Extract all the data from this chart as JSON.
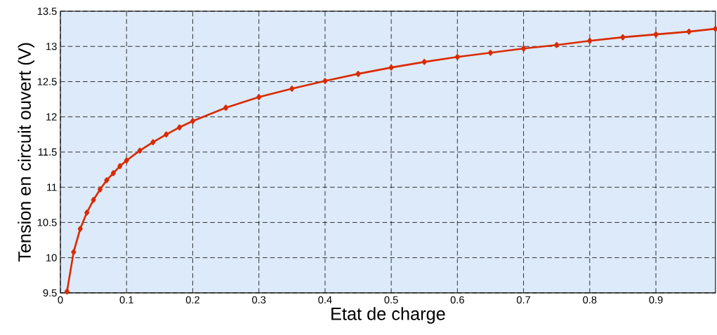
{
  "chart_data": {
    "type": "line",
    "xlabel": "Etat de charge",
    "ylabel": "Tension en circuit ouvert (V)",
    "x": [
      0.01,
      0.02,
      0.03,
      0.04,
      0.05,
      0.06,
      0.07,
      0.08,
      0.09,
      0.1,
      0.12,
      0.14,
      0.16,
      0.18,
      0.2,
      0.25,
      0.3,
      0.35,
      0.4,
      0.45,
      0.5,
      0.55,
      0.6,
      0.65,
      0.7,
      0.75,
      0.8,
      0.85,
      0.9,
      0.95,
      0.99
    ],
    "series": [
      {
        "color": "#d92b00",
        "values": [
          9.52,
          10.08,
          10.41,
          10.64,
          10.82,
          10.97,
          11.1,
          11.2,
          11.3,
          11.38,
          11.52,
          11.64,
          11.75,
          11.85,
          11.94,
          12.13,
          12.28,
          12.4,
          12.51,
          12.61,
          12.7,
          12.78,
          12.85,
          12.91,
          12.97,
          13.02,
          13.08,
          13.13,
          13.17,
          13.21,
          13.25
        ]
      }
    ],
    "xlim": [
      0,
      0.99
    ],
    "ylim": [
      9.5,
      13.5
    ],
    "xticks": [
      0,
      0.1,
      0.2,
      0.3,
      0.4,
      0.5,
      0.6,
      0.7,
      0.8,
      0.9
    ],
    "yticks": [
      9.5,
      10,
      10.5,
      11,
      11.5,
      12,
      12.5,
      13,
      13.5
    ],
    "grid": true,
    "marker": "diamond",
    "line_style": "solid"
  }
}
